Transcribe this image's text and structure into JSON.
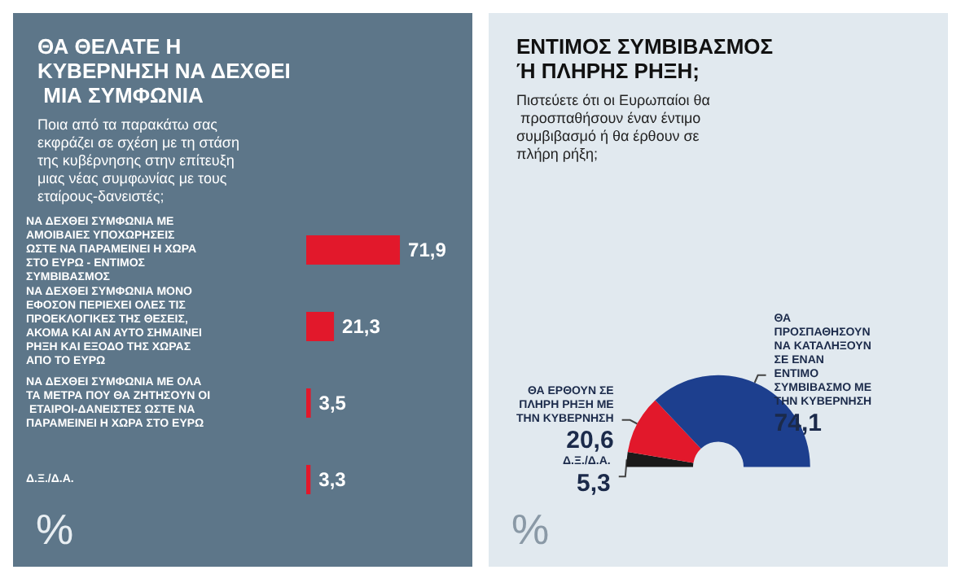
{
  "chart_data": [
    {
      "type": "bar",
      "orientation": "horizontal",
      "title": "ΘΑ ΘΕΛΑΤΕ Η ΚΥΒΕΡΝΗΣΗ ΝΑ ΔΕΧΘΕΙ ΜΙΑ ΣΥΜΦΩΝΙΑ",
      "subtitle": "Ποια από τα παρακάτω σας εκφράζει σε σχέση με τη στάση της κυβέρνησης στην επίτευξη μιας νέας συμφωνίας με τους εταίρους-δανειστές;",
      "categories": [
        "ΝΑ ΔΕΧΘΕΙ ΣΥΜΦΩΝΙΑ ΜΕ ΑΜΟΙΒΑΙΕΣ ΥΠΟΧΩΡΗΣΕΙΣ ΩΣΤΕ ΝΑ ΠΑΡΑΜΕΙΝΕΙ Η ΧΩΡΑ ΣΤΟ ΕΥΡΩ - ΕΝΤΙΜΟΣ ΣΥΜΒΙΒΑΣΜΟΣ",
        "ΝΑ ΔΕΧΘΕΙ ΣΥΜΦΩΝΙΑ ΜΟΝΟ ΕΦΟΣΟΝ ΠΕΡΙΕΧΕΙ ΟΛΕΣ ΤΙΣ ΠΡΟΕΚΛΟΓΙΚΕΣ ΤΗΣ ΘΕΣΕΙΣ, ΑΚΟΜΑ ΚΑΙ ΑΝ ΑΥΤΟ ΣΗΜΑΙΝΕΙ ΡΗΞΗ ΚΑΙ ΕΞΟΔΟ ΤΗΣ ΧΩΡΑΣ ΑΠΟ ΤΟ ΕΥΡΩ",
        "ΝΑ ΔΕΧΘΕΙ ΣΥΜΦΩΝΙΑ ΜΕ ΟΛΑ ΤΑ ΜΕΤΡΑ ΠΟΥ ΘΑ ΖΗΤΗΣΟΥΝ ΟΙ ΕΤΑΙΡΟΙ-ΔΑΝΕΙΣΤΕΣ ΩΣΤΕ ΝΑ ΠΑΡΑΜΕΙΝΕΙ Η ΧΩΡΑ ΣΤΟ ΕΥΡΩ",
        "Δ.Ξ./Δ.Α."
      ],
      "values": [
        71.9,
        21.3,
        3.5,
        3.3
      ],
      "value_labels": [
        "71,9",
        "21,3",
        "3,5",
        "3,3"
      ],
      "color": "#e2182b",
      "annotations": [
        "%"
      ]
    },
    {
      "type": "donut",
      "title": "ΕΝΤΙΜΟΣ ΣΥΜΒΙΒΑΣΜΟΣ Ή ΠΛΗΡΗΣ ΡΗΞΗ;",
      "subtitle": "Πιστεύετε ότι οι Ευρωπαίοι θα προσπαθήσουν έναν έντιμο συμβιβασμό ή θα έρθουν σε πλήρη ρήξη;",
      "categories": [
        "Δ.Ξ./Δ.Α.",
        "ΘΑ ΕΡΘΟΥΝ ΣΕ ΠΛΗΡΗ ΡΗΞΗ ΜΕ ΤΗΝ ΚΥΒΕΡΝΗΣΗ",
        "ΘΑ ΠΡΟΣΠΑΘΗΣΟΥΝ ΝΑ ΚΑΤΑΛΗΞΟΥΝ ΣΕ ΕΝΑΝ ΕΝΤΙΜΟ ΣΥΜΒΙΒΑΣΜΟ ΜΕ ΤΗΝ ΚΥΒΕΡΝΗΣΗ"
      ],
      "values": [
        5.3,
        20.6,
        74.1
      ],
      "value_labels": [
        "5,3",
        "20,6",
        "74,1"
      ],
      "colors": [
        "#1a1a1a",
        "#e2182b",
        "#1d3f8e"
      ],
      "annotations": [
        "%"
      ]
    }
  ]
}
